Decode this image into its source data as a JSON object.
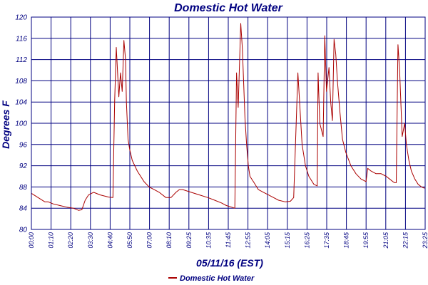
{
  "chart_data": {
    "type": "line",
    "title": "Domestic Hot Water",
    "ylabel": "Degrees F",
    "xlabel": "05/11/16 (EST)",
    "ylim": [
      80,
      120
    ],
    "y_ticks": [
      80,
      84,
      88,
      92,
      96,
      100,
      104,
      108,
      112,
      116,
      120
    ],
    "x_tick_labels": [
      "00:00",
      "01:10",
      "02:20",
      "03:30",
      "04:40",
      "05:50",
      "07:00",
      "08:10",
      "09:25",
      "10:35",
      "11:45",
      "12:55",
      "14:05",
      "15:15",
      "16:25",
      "17:35",
      "18:45",
      "19:55",
      "21:05",
      "22:15",
      "23:25"
    ],
    "x_range_hours": [
      0,
      23.4167
    ],
    "grid": true,
    "legend": "bottom",
    "colors": {
      "series": "#aa0000",
      "grid": "#000080",
      "text": "#000080",
      "background": "#ffffff"
    },
    "series": [
      {
        "name": "Domestic Hot Water",
        "x": [
          0,
          0.4,
          0.8,
          1.0,
          1.3,
          1.7,
          2.1,
          2.5,
          2.8,
          3.0,
          3.2,
          3.4,
          3.7,
          4.1,
          4.6,
          4.85,
          4.95,
          5.05,
          5.2,
          5.3,
          5.4,
          5.5,
          5.6,
          5.65,
          5.75,
          5.85,
          6.0,
          6.3,
          6.7,
          7.0,
          7.3,
          7.6,
          8.0,
          8.3,
          8.6,
          8.8,
          9.0,
          9.5,
          10.0,
          10.5,
          10.9,
          11.3,
          11.6,
          11.9,
          12.1,
          12.2,
          12.3,
          12.45,
          12.55,
          12.7,
          12.8,
          12.9,
          13.0,
          13.2,
          13.5,
          13.8,
          14.1,
          14.4,
          14.7,
          15.1,
          15.4,
          15.6,
          15.85,
          15.95,
          16.1,
          16.3,
          16.5,
          16.8,
          17.0,
          17.05,
          17.15,
          17.35,
          17.45,
          17.55,
          17.7,
          17.8,
          17.9,
          18.0,
          18.1,
          18.2,
          18.35,
          18.5,
          18.7,
          19.0,
          19.3,
          19.6,
          19.9,
          20.0,
          20.2,
          20.5,
          20.8,
          21.1,
          21.3,
          21.5,
          21.6,
          21.7,
          21.8,
          21.9,
          22.05,
          22.2,
          22.3,
          22.45,
          22.6,
          22.8,
          23.0,
          23.2,
          23.35,
          23.42
        ],
        "y": [
          86.8,
          86.0,
          85.2,
          85.2,
          84.8,
          84.5,
          84.2,
          84.0,
          83.6,
          83.7,
          85.5,
          86.5,
          87.0,
          86.5,
          86.1,
          86.0,
          104.0,
          114.3,
          105.0,
          109.5,
          106.0,
          115.6,
          112.0,
          104.0,
          97.0,
          95.0,
          93.0,
          91.0,
          89.0,
          88.0,
          87.5,
          87.0,
          86.0,
          86.0,
          87.0,
          87.5,
          87.5,
          87.0,
          86.5,
          86.0,
          85.5,
          85.0,
          84.5,
          84.2,
          84.0,
          109.5,
          103.0,
          118.8,
          114.0,
          101.0,
          96.0,
          92.0,
          90.0,
          89.0,
          87.5,
          87.0,
          86.5,
          86.0,
          85.5,
          85.2,
          85.3,
          86.0,
          109.5,
          104.0,
          96.0,
          92.0,
          90.0,
          88.5,
          88.2,
          109.5,
          100.0,
          97.5,
          116.5,
          106.0,
          110.5,
          104.0,
          100.5,
          115.8,
          113.0,
          108.0,
          102.0,
          97.0,
          94.5,
          92.0,
          90.5,
          89.5,
          89.0,
          91.5,
          91.0,
          90.5,
          90.5,
          90.0,
          89.5,
          89.0,
          88.8,
          88.8,
          114.8,
          110.0,
          97.5,
          100.0,
          96.0,
          93.0,
          91.0,
          89.5,
          88.5,
          88.0,
          87.8,
          87.8
        ]
      }
    ]
  }
}
